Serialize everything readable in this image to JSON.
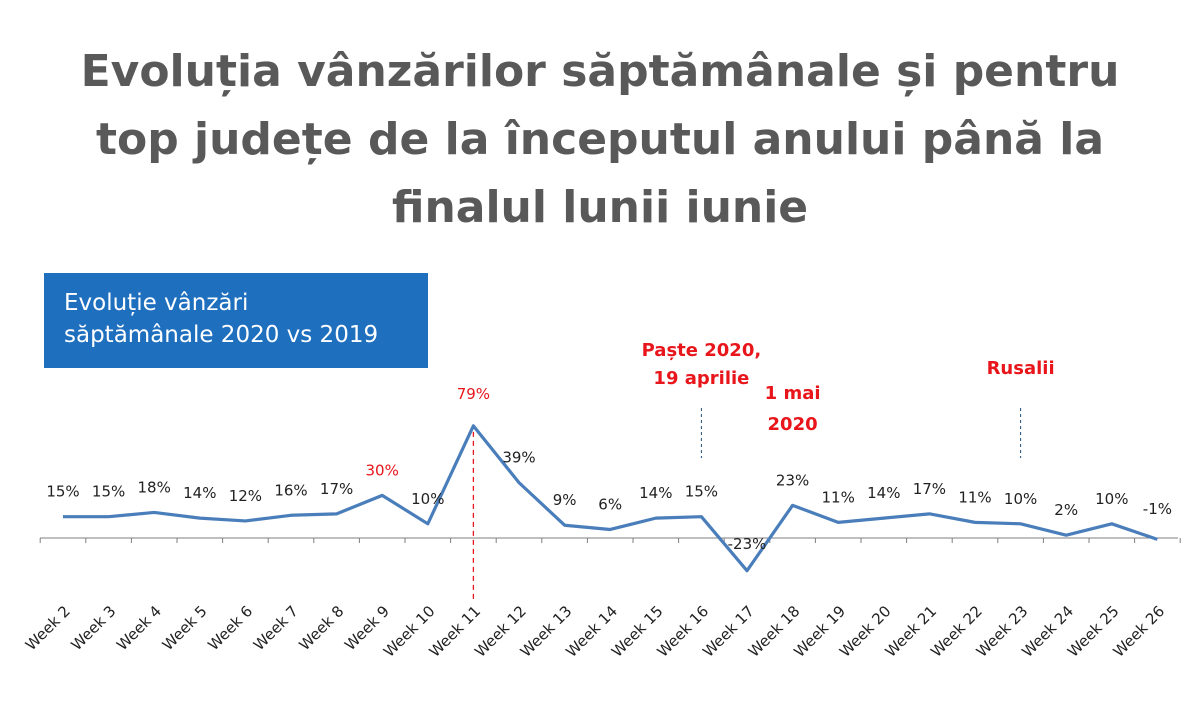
{
  "header": {
    "title_lines": [
      "Evoluția vânzărilor săptămânale și pentru",
      "top județe de la începutul anului până la",
      "finalul lunii iunie"
    ]
  },
  "legend_box": {
    "lines": [
      "Evoluție vânzări",
      "săptămânale 2020 vs 2019"
    ]
  },
  "colors": {
    "line": "#4a7ebb",
    "accent_red": "#e8151b",
    "legend_bg": "#1f6fbf",
    "title": "#595959"
  },
  "chart_data": {
    "type": "line",
    "title": "Evoluție vânzări săptămânale 2020 vs 2019",
    "categories": [
      "Week 2",
      "Week 3",
      "Week 4",
      "Week 5",
      "Week 6",
      "Week 7",
      "Week 8",
      "Week 9",
      "Week 10",
      "Week 11",
      "Week 12",
      "Week 13",
      "Week 14",
      "Week 15",
      "Week 16",
      "Week 17",
      "Week 18",
      "Week 19",
      "Week 20",
      "Week 21",
      "Week 22",
      "Week 23",
      "Week 24",
      "Week 25",
      "Week 26"
    ],
    "series": [
      {
        "values": [
          15,
          15,
          18,
          14,
          12,
          16,
          17,
          30,
          10,
          79,
          39,
          9,
          6,
          14,
          15,
          -23,
          23,
          11,
          14,
          17,
          11,
          10,
          2,
          10,
          -1
        ],
        "labels": [
          "15%",
          "15%",
          "18%",
          "14%",
          "12%",
          "16%",
          "17%",
          "30%",
          "10%",
          "79%",
          "39%",
          "9%",
          "6%",
          "14%",
          "15%",
          "-23%",
          "23%",
          "11%",
          "14%",
          "17%",
          "11%",
          "10%",
          "2%",
          "10%",
          "-1%"
        ]
      }
    ],
    "highlighted_labels": [
      "Week 9",
      "Week 11"
    ],
    "ylim": [
      -30,
      85
    ],
    "grid": false,
    "annotations": [
      {
        "category": "Week 11",
        "text_lines": [],
        "line_style": "dashed-red"
      },
      {
        "category": "Week 16",
        "text_lines": [
          "Paște 2020,",
          "19 aprilie"
        ],
        "line_style": "dashed-blue"
      },
      {
        "category": "Week 18",
        "text_lines": [
          "1 mai",
          "2020"
        ],
        "line_style": "none"
      },
      {
        "category": "Week 23",
        "text_lines": [
          "Rusalii"
        ],
        "line_style": "dashed-blue"
      }
    ]
  }
}
